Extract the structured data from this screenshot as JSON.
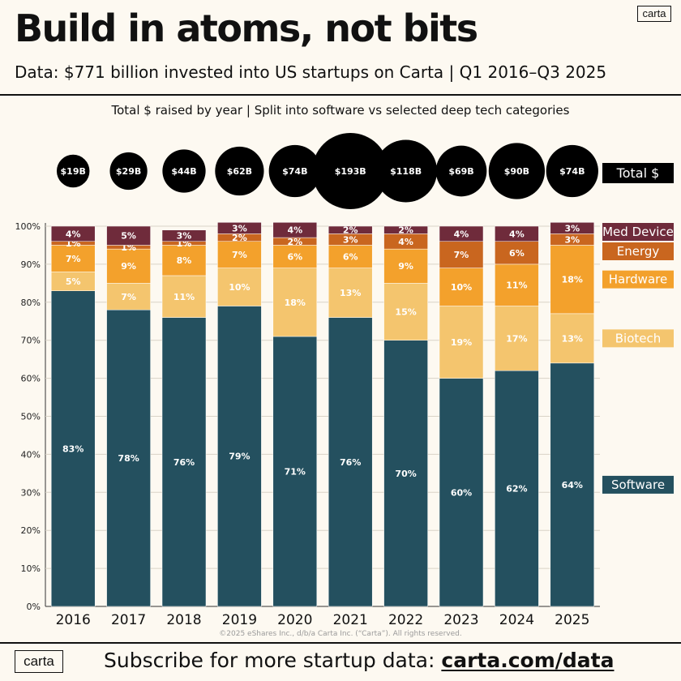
{
  "logo_text": "carta",
  "title": "Build in atoms, not bits",
  "subtitle": "Data: $771 billion invested into US startups on Carta | Q1 2016–Q3 2025",
  "copyright": "©2025 eShares Inc., d/b/a Carta Inc. (“Carta”). All rights reserved.",
  "footer": {
    "text": "Subscribe for more startup data: ",
    "link": "carta.com/data"
  },
  "colors": {
    "background": "#fdf9f1",
    "software": "#24505f",
    "biotech": "#f4c56e",
    "hardware": "#f3a12c",
    "energy": "#c9661f",
    "med_device": "#6f2b3b",
    "bubble": "#000000"
  },
  "chart_data": {
    "type": "bar",
    "stacked": true,
    "subtitle": "Total $ raised by year | Split into software vs  selected deep tech categories",
    "categories": [
      "2016",
      "2017",
      "2018",
      "2019",
      "2020",
      "2021",
      "2022",
      "2023",
      "2024",
      "2025"
    ],
    "series": [
      {
        "name": "Software",
        "color": "#24505f",
        "values": [
          83,
          78,
          76,
          79,
          71,
          76,
          70,
          60,
          62,
          64
        ],
        "labels": [
          "83%",
          "78%",
          "76%",
          "79%",
          "71%",
          "76%",
          "70%",
          "60%",
          "62%",
          "64%"
        ]
      },
      {
        "name": "Biotech",
        "color": "#f4c56e",
        "values": [
          5,
          7,
          11,
          10,
          18,
          13,
          15,
          19,
          17,
          13
        ],
        "labels": [
          "5%",
          "7%",
          "11%",
          "10%",
          "18%",
          "13%",
          "15%",
          "19%",
          "17%",
          "13%"
        ]
      },
      {
        "name": "Hardware",
        "color": "#f3a12c",
        "values": [
          7,
          9,
          8,
          7,
          6,
          6,
          9,
          10,
          11,
          18
        ],
        "labels": [
          "7%",
          "9%",
          "8%",
          "7%",
          "6%",
          "6%",
          "9%",
          "10%",
          "11%",
          "18%"
        ]
      },
      {
        "name": "Energy",
        "color": "#c9661f",
        "values": [
          1,
          1,
          1,
          2,
          2,
          3,
          4,
          7,
          6,
          3
        ],
        "labels": [
          "1%",
          "1%",
          "1%",
          "2%",
          "2%",
          "3%",
          "4%",
          "7%",
          "6%",
          "3%"
        ]
      },
      {
        "name": "Med Device",
        "color": "#6f2b3b",
        "values": [
          4,
          5,
          3,
          3,
          4,
          2,
          2,
          4,
          4,
          3
        ],
        "labels": [
          "4%",
          "5%",
          "3%",
          "3%",
          "4%",
          "2%",
          "2%",
          "4%",
          "4%",
          "3%"
        ]
      }
    ],
    "totals": {
      "label": "Total $",
      "values_billions": [
        19,
        29,
        44,
        62,
        74,
        193,
        118,
        69,
        90,
        74
      ],
      "labels": [
        "$19B",
        "$29B",
        "$44B",
        "$62B",
        "$74B",
        "$193B",
        "$118B",
        "$69B",
        "$90B",
        "$74B"
      ]
    },
    "ylim": [
      0,
      100
    ],
    "yticks": [
      0,
      10,
      20,
      30,
      40,
      50,
      60,
      70,
      80,
      90,
      100
    ],
    "ytick_labels": [
      "0%",
      "10%",
      "20%",
      "30%",
      "40%",
      "50%",
      "60%",
      "70%",
      "80%",
      "90%",
      "100%"
    ],
    "xlabel": "",
    "ylabel": "",
    "legend_position": "right"
  }
}
